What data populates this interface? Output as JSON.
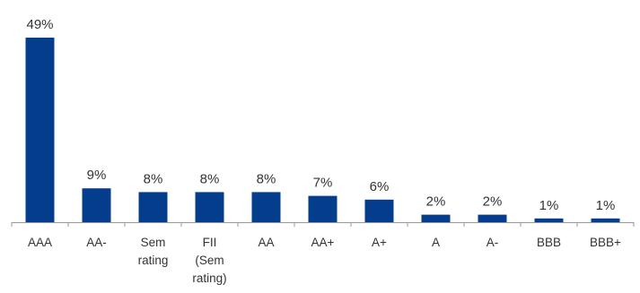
{
  "chart_data": {
    "type": "bar",
    "title": "",
    "xlabel": "",
    "ylabel": "",
    "categories": [
      [
        "AAA"
      ],
      [
        "AA-"
      ],
      [
        "Sem",
        "rating"
      ],
      [
        "FII",
        "(Sem",
        "rating)"
      ],
      [
        "AA"
      ],
      [
        "AA+"
      ],
      [
        "A+"
      ],
      [
        "A"
      ],
      [
        "A-"
      ],
      [
        "BBB"
      ],
      [
        "BBB+"
      ]
    ],
    "values": [
      49,
      9,
      8,
      8,
      8,
      7,
      6,
      2,
      2,
      1,
      1
    ],
    "data_labels": [
      "49%",
      "9%",
      "8%",
      "8%",
      "8%",
      "7%",
      "6%",
      "2%",
      "2%",
      "1%",
      "1%"
    ],
    "unit": "%",
    "ylim": [
      0,
      49
    ],
    "grid": false,
    "legend": "none",
    "colors": {
      "bar": "#033d8c",
      "axis": "#999999",
      "text": "#333333"
    }
  }
}
